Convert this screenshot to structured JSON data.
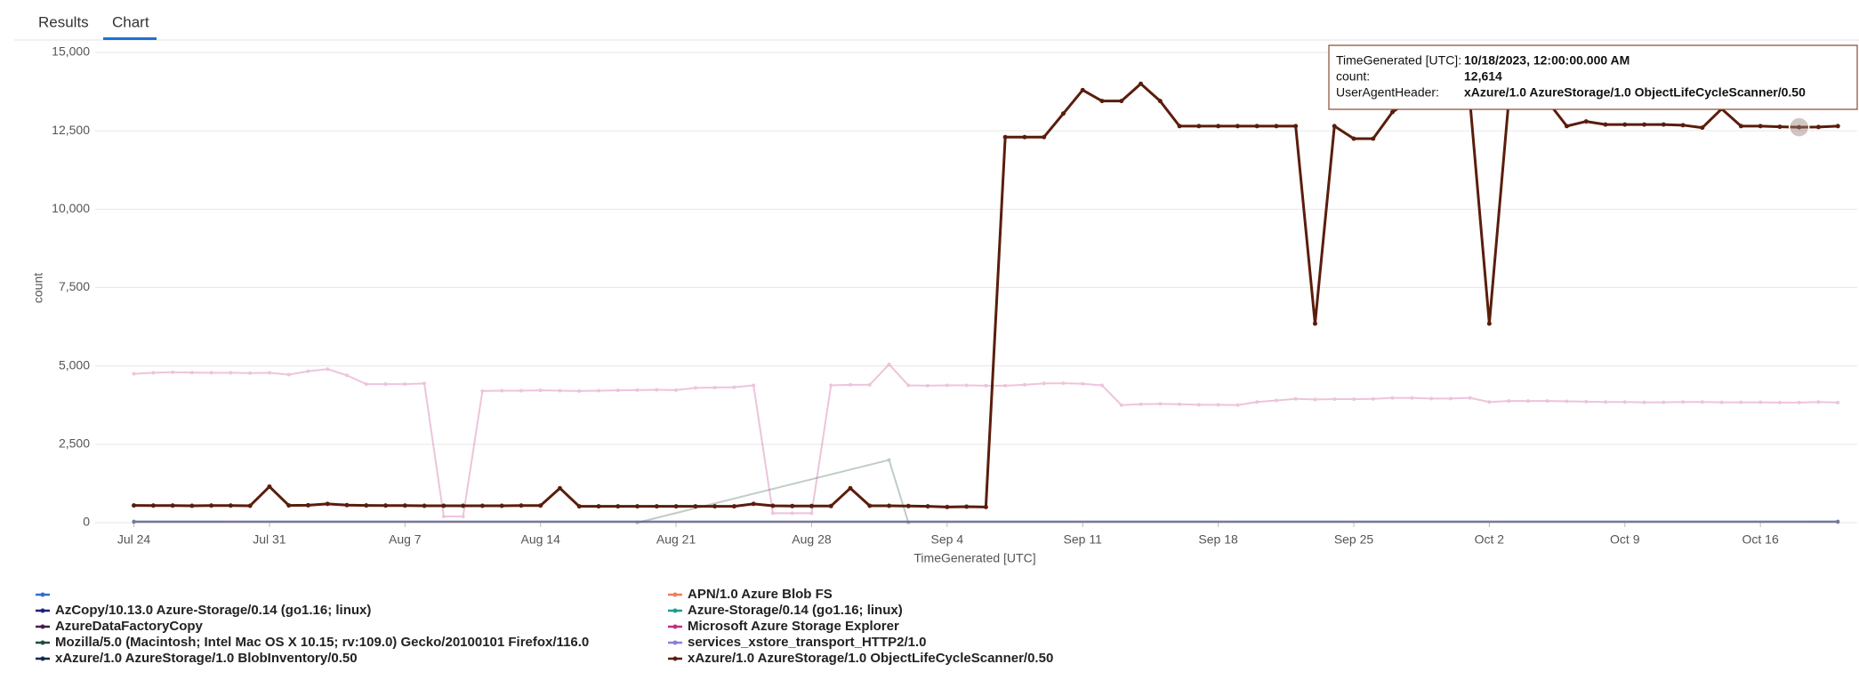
{
  "tabs": [
    "Results",
    "Chart"
  ],
  "tooltip": {
    "rows": [
      {
        "label": "TimeGenerated [UTC]:",
        "value": "10/18/2023, 12:00:00.000 AM"
      },
      {
        "label": "count:",
        "value": "12,614"
      },
      {
        "label": "UserAgentHeader:",
        "value": "xAzure/1.0 AzureStorage/1.0 ObjectLifeCycleScanner/0.50"
      }
    ]
  },
  "chart_data": {
    "type": "line",
    "x_label": "TimeGenerated [UTC]",
    "y_label": "count",
    "xlim": [
      "2023-07-22",
      "2023-10-21"
    ],
    "xticks": [
      {
        "value": "2023-07-24",
        "label": "Jul 24"
      },
      {
        "value": "2023-07-31",
        "label": "Jul 31"
      },
      {
        "value": "2023-08-07",
        "label": "Aug 7"
      },
      {
        "value": "2023-08-14",
        "label": "Aug 14"
      },
      {
        "value": "2023-08-21",
        "label": "Aug 21"
      },
      {
        "value": "2023-08-28",
        "label": "Aug 28"
      },
      {
        "value": "2023-09-04",
        "label": "Sep 4"
      },
      {
        "value": "2023-09-11",
        "label": "Sep 11"
      },
      {
        "value": "2023-09-18",
        "label": "Sep 18"
      },
      {
        "value": "2023-09-25",
        "label": "Sep 25"
      },
      {
        "value": "2023-10-02",
        "label": "Oct 2"
      },
      {
        "value": "2023-10-09",
        "label": "Oct 9"
      },
      {
        "value": "2023-10-16",
        "label": "Oct 16"
      }
    ],
    "ylim": [
      0,
      15000
    ],
    "yticks": [
      0,
      {
        "value": 2500,
        "label": "2,500"
      },
      {
        "value": 5000,
        "label": "5,000"
      },
      {
        "value": 7500,
        "label": "7,500"
      },
      {
        "value": 10000,
        "label": "10,000"
      },
      {
        "value": 12500,
        "label": "12,500"
      },
      {
        "value": 15000,
        "label": "15,000"
      }
    ],
    "grid": true,
    "highlight": 9,
    "x": [
      "2023-07-24",
      "2023-07-25",
      "2023-07-26",
      "2023-07-27",
      "2023-07-28",
      "2023-07-29",
      "2023-07-30",
      "2023-07-31",
      "2023-08-01",
      "2023-08-02",
      "2023-08-03",
      "2023-08-04",
      "2023-08-05",
      "2023-08-06",
      "2023-08-07",
      "2023-08-08",
      "2023-08-09",
      "2023-08-10",
      "2023-08-11",
      "2023-08-12",
      "2023-08-13",
      "2023-08-14",
      "2023-08-15",
      "2023-08-16",
      "2023-08-17",
      "2023-08-18",
      "2023-08-19",
      "2023-08-20",
      "2023-08-21",
      "2023-08-22",
      "2023-08-23",
      "2023-08-24",
      "2023-08-25",
      "2023-08-26",
      "2023-08-27",
      "2023-08-28",
      "2023-08-29",
      "2023-08-30",
      "2023-08-31",
      "2023-09-01",
      "2023-09-02",
      "2023-09-03",
      "2023-09-04",
      "2023-09-05",
      "2023-09-06",
      "2023-09-07",
      "2023-09-08",
      "2023-09-09",
      "2023-09-10",
      "2023-09-11",
      "2023-09-12",
      "2023-09-13",
      "2023-09-14",
      "2023-09-15",
      "2023-09-16",
      "2023-09-17",
      "2023-09-18",
      "2023-09-19",
      "2023-09-20",
      "2023-09-21",
      "2023-09-22",
      "2023-09-23",
      "2023-09-24",
      "2023-09-25",
      "2023-09-26",
      "2023-09-27",
      "2023-09-28",
      "2023-09-29",
      "2023-09-30",
      "2023-10-01",
      "2023-10-02",
      "2023-10-03",
      "2023-10-04",
      "2023-10-05",
      "2023-10-06",
      "2023-10-07",
      "2023-10-08",
      "2023-10-09",
      "2023-10-10",
      "2023-10-11",
      "2023-10-12",
      "2023-10-13",
      "2023-10-14",
      "2023-10-15",
      "2023-10-16",
      "2023-10-17",
      "2023-10-18",
      "2023-10-19",
      "2023-10-20"
    ],
    "series": [
      {
        "name": null,
        "color": "#2f6fd6",
        "x": [
          "2023-07-24",
          "2023-10-20"
        ],
        "values": [
          20,
          20
        ]
      },
      {
        "name": "AzCopy/10.13.0 Azure-Storage/0.14 (go1.16; linux)",
        "color": "#1a237e",
        "x": [
          "2023-07-24",
          "2023-10-20"
        ],
        "values": [
          30,
          30
        ]
      },
      {
        "name": "AzureDataFactoryCopy",
        "color": "#4a1a4f",
        "x": [
          "2023-07-24",
          "2023-10-20"
        ],
        "values": [
          25,
          25
        ]
      },
      {
        "name": "Mozilla/5.0 (Macintosh; Intel Mac OS X 10.15; rv:109.0) Gecko/20100101 Firefox/116.0",
        "color": "#1e4d3a",
        "x": [
          "2023-08-19",
          "2023-09-01",
          "2023-09-02"
        ],
        "values": [
          0,
          2000,
          0
        ]
      },
      {
        "name": "xAzure/1.0 AzureStorage/1.0 BlobInventory/0.50",
        "color": "#0d2b4a",
        "x": [
          "2023-07-24",
          "2023-10-20"
        ],
        "values": [
          40,
          40
        ]
      },
      {
        "name": "APN/1.0 Azure Blob FS",
        "color": "#f07c5a",
        "x": [
          "2023-07-24",
          "2023-10-20"
        ],
        "values": [
          15,
          15
        ]
      },
      {
        "name": "Azure-Storage/0.14 (go1.16; linux)",
        "color": "#1a9e8f",
        "x": [
          "2023-07-24",
          "2023-10-20"
        ],
        "values": [
          35,
          35
        ]
      },
      {
        "name": "Microsoft Azure Storage Explorer",
        "color": "#c2307f",
        "values": [
          4750,
          4780,
          4800,
          4790,
          4780,
          4780,
          4770,
          4780,
          4720,
          4830,
          4900,
          4700,
          4420,
          4420,
          4420,
          4440,
          200,
          200,
          4200,
          4210,
          4210,
          4220,
          4210,
          4200,
          4210,
          4220,
          4230,
          4240,
          4230,
          4300,
          4310,
          4320,
          4380,
          300,
          300,
          300,
          4380,
          4400,
          4400,
          5050,
          4380,
          4370,
          4380,
          4380,
          4370,
          4370,
          4400,
          4440,
          4450,
          4430,
          4380,
          3750,
          3780,
          3790,
          3780,
          3760,
          3760,
          3750,
          3850,
          3900,
          3950,
          3930,
          3940,
          3940,
          3950,
          3980,
          3980,
          3960,
          3960,
          3980,
          3850,
          3880,
          3880,
          3880,
          3870,
          3860,
          3850,
          3850,
          3840,
          3840,
          3850,
          3850,
          3840,
          3840,
          3840,
          3830,
          3830,
          3850,
          3830
        ]
      },
      {
        "name": "services_xstore_transport_HTTP2/1.0",
        "color": "#8c7fd6",
        "x": [
          "2023-07-24",
          "2023-10-20"
        ],
        "values": [
          50,
          50
        ]
      },
      {
        "name": "xAzure/1.0 AzureStorage/1.0 ObjectLifeCycleScanner/0.50",
        "color": "#5a1d0c",
        "values": [
          550,
          545,
          545,
          540,
          545,
          545,
          540,
          1150,
          550,
          555,
          600,
          560,
          550,
          545,
          545,
          540,
          540,
          540,
          540,
          540,
          545,
          545,
          1100,
          520,
          520,
          520,
          520,
          520,
          520,
          520,
          520,
          520,
          600,
          540,
          530,
          530,
          530,
          1100,
          540,
          540,
          530,
          520,
          500,
          510,
          500,
          12300,
          12300,
          12300,
          13050,
          13800,
          13450,
          13450,
          14000,
          13450,
          12650,
          12650,
          12650,
          12650,
          12650,
          12650,
          12650,
          6350,
          12650,
          12250,
          12250,
          13100,
          13500,
          13900,
          13450,
          13450,
          6350,
          13450,
          13450,
          13450,
          12650,
          12800,
          12700,
          12700,
          12700,
          12700,
          12680,
          12600,
          13200,
          12650,
          12650,
          12630,
          12614,
          12620,
          12650
        ]
      }
    ]
  }
}
